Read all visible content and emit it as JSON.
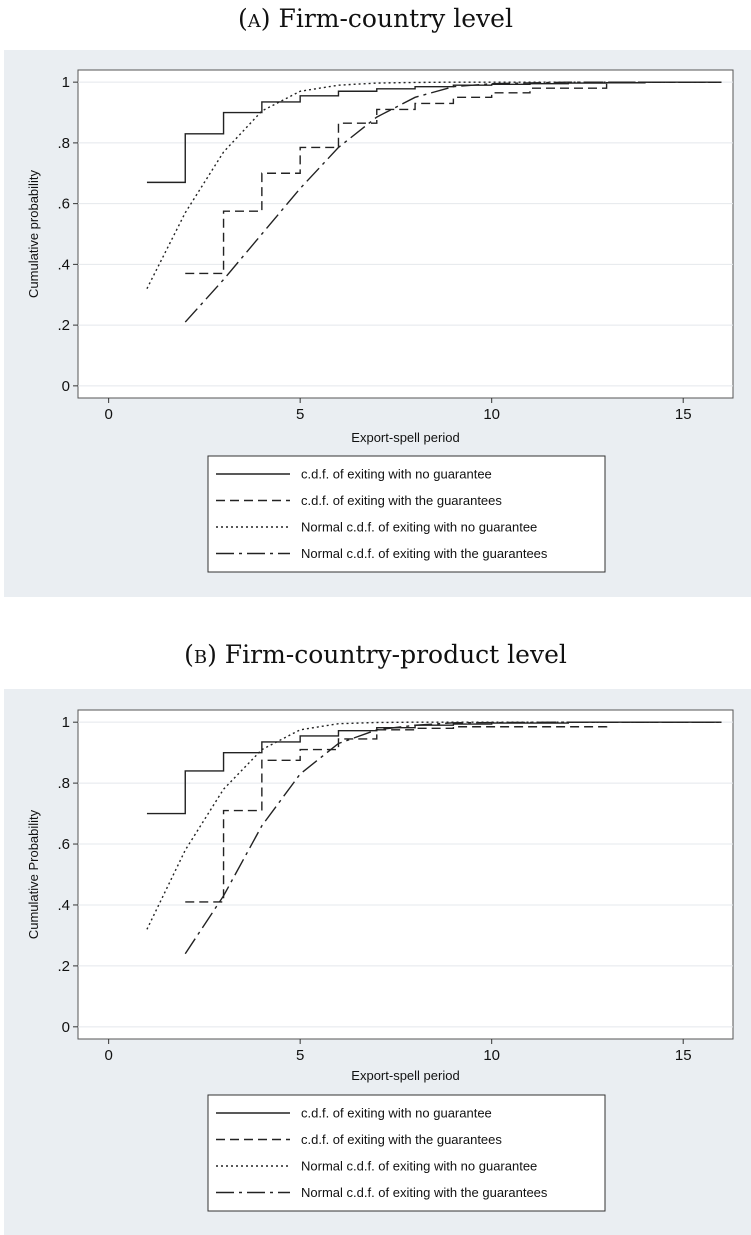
{
  "captions": {
    "a_label": "(a)",
    "a_title": "Firm-country level",
    "b_label": "(b)",
    "b_title": "Firm-country-product level"
  },
  "chart_data": [
    {
      "type": "line",
      "title": "Firm-country level",
      "xlabel": "Export-spell period",
      "ylabel": "Cumulative probability",
      "xlim": [
        -0.8,
        16.3
      ],
      "ylim": [
        -0.04,
        1.04
      ],
      "xticks": [
        "0",
        "5",
        "10",
        "15"
      ],
      "yticks": [
        "0",
        ".2",
        ".4",
        ".6",
        ".8",
        "1"
      ],
      "grid": true,
      "legend_position": "bottom",
      "series": [
        {
          "name": "c.d.f. of exiting with no guarantee",
          "style": "step-solid",
          "x": [
            1,
            2,
            3,
            4,
            5,
            6,
            7,
            8,
            9,
            10,
            11,
            12,
            13,
            14,
            16
          ],
          "y": [
            0.67,
            0.83,
            0.9,
            0.935,
            0.955,
            0.97,
            0.978,
            0.985,
            0.99,
            0.993,
            0.995,
            0.997,
            0.998,
            1.0,
            1.0
          ]
        },
        {
          "name": "c.d.f. of exiting with the guarantees",
          "style": "step-dashed",
          "x": [
            2,
            3,
            4,
            5,
            6,
            7,
            8,
            9,
            10,
            11,
            13,
            16
          ],
          "y": [
            0.37,
            0.575,
            0.7,
            0.785,
            0.865,
            0.91,
            0.93,
            0.95,
            0.965,
            0.98,
            1.0,
            1.0
          ]
        },
        {
          "name": "Normal c.d.f. of exiting with no guarantee",
          "style": "dotted",
          "x": [
            1,
            2,
            3,
            4,
            5,
            6,
            7,
            8,
            9,
            12,
            16
          ],
          "y": [
            0.32,
            0.57,
            0.77,
            0.905,
            0.97,
            0.99,
            0.997,
            0.999,
            1.0,
            1.0,
            1.0
          ]
        },
        {
          "name": "Normal c.d.f. of exiting with the guarantees",
          "style": "dashdot",
          "x": [
            2,
            3,
            4,
            5,
            6,
            7,
            8,
            9,
            10,
            12,
            16
          ],
          "y": [
            0.21,
            0.35,
            0.5,
            0.65,
            0.785,
            0.885,
            0.95,
            0.985,
            0.995,
            1.0,
            1.0
          ]
        }
      ]
    },
    {
      "type": "line",
      "title": "Firm-country-product level",
      "xlabel": "Export-spell period",
      "ylabel": "Cumulative Probability",
      "xlim": [
        -0.8,
        16.3
      ],
      "ylim": [
        -0.04,
        1.04
      ],
      "xticks": [
        "0",
        "5",
        "10",
        "15"
      ],
      "yticks": [
        "0",
        ".2",
        ".4",
        ".6",
        ".8",
        "1"
      ],
      "grid": true,
      "legend_position": "bottom",
      "series": [
        {
          "name": "c.d.f. of exiting with no guarantee",
          "style": "step-solid",
          "x": [
            1,
            2,
            3,
            4,
            5,
            6,
            7,
            8,
            9,
            10,
            12,
            16
          ],
          "y": [
            0.7,
            0.84,
            0.9,
            0.935,
            0.955,
            0.972,
            0.982,
            0.99,
            0.994,
            0.997,
            1.0,
            1.0
          ]
        },
        {
          "name": "c.d.f. of exiting with the guarantees",
          "style": "step-dashed",
          "x": [
            2,
            3,
            4,
            5,
            6,
            7,
            8,
            9,
            10,
            11,
            13,
            16
          ],
          "y": [
            0.41,
            0.71,
            0.875,
            0.91,
            0.945,
            0.975,
            0.98,
            0.985,
            0.985,
            0.985,
            1.0,
            1.0
          ]
        },
        {
          "name": "Normal c.d.f. of exiting with no guarantee",
          "style": "dotted",
          "x": [
            1,
            2,
            3,
            4,
            5,
            6,
            7,
            8,
            12,
            16
          ],
          "y": [
            0.32,
            0.58,
            0.78,
            0.91,
            0.975,
            0.995,
            0.999,
            1.0,
            1.0,
            1.0
          ]
        },
        {
          "name": "Normal c.d.f. of exiting with the guarantees",
          "style": "dashdot",
          "x": [
            2,
            3,
            4,
            5,
            6,
            7,
            8,
            9,
            12,
            16
          ],
          "y": [
            0.24,
            0.43,
            0.66,
            0.83,
            0.93,
            0.975,
            0.99,
            0.998,
            1.0,
            1.0
          ]
        }
      ]
    }
  ]
}
